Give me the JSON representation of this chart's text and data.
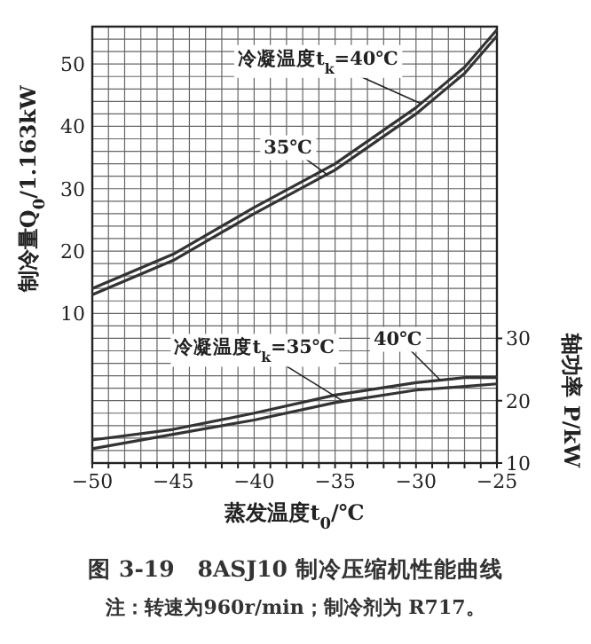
{
  "chart_data": {
    "type": "line",
    "title": "图 3-19　8ASJ10 制冷压缩机性能曲线",
    "annotations": [
      "注：转速为960r/min；制冷剂为 R717。"
    ],
    "xlabel": "蒸发温度t$_{0}$/℃",
    "ylabel": "制冷量Q$_{0}$/1.163kW",
    "y2label": "轴功率 P/kW",
    "x": [
      -50,
      -45,
      -40,
      -35,
      -30,
      -27,
      -25
    ],
    "series": [
      {
        "name": "冷凝温度t$_{k}$=40℃",
        "color": "#333333",
        "values": [
          14,
          19.5,
          27,
          34,
          43,
          49.5,
          55.5
        ]
      },
      {
        "name": "35℃",
        "color": "#333333",
        "values": [
          13,
          18.5,
          26,
          33,
          42,
          48.5,
          54.5
        ]
      },
      {
        "name": "冷凝温度t$_{k}$=35℃",
        "color": "#333333",
        "axis": "y2",
        "values": [
          12.3,
          14.6,
          16.9,
          19.7,
          21.7,
          22.3,
          22.7
        ]
      },
      {
        "name": "40℃",
        "color": "#333333",
        "axis": "y2",
        "values": [
          13.7,
          15.4,
          18,
          20.9,
          22.9,
          23.7,
          23.7
        ]
      }
    ],
    "xlim": [
      -50,
      -25
    ],
    "xticks": [
      -50,
      {
        "value": -49,
        "label": null
      },
      {
        "value": -48,
        "label": null
      },
      {
        "value": -47,
        "label": null
      },
      {
        "value": -46,
        "label": null
      },
      -45,
      {
        "value": -44,
        "label": null
      },
      {
        "value": -43,
        "label": null
      },
      {
        "value": -42,
        "label": null
      },
      {
        "value": -41,
        "label": null
      },
      -40,
      {
        "value": -39,
        "label": null
      },
      {
        "value": -38,
        "label": null
      },
      {
        "value": -37,
        "label": null
      },
      {
        "value": -36,
        "label": null
      },
      -35,
      {
        "value": -34,
        "label": null
      },
      {
        "value": -33,
        "label": null
      },
      {
        "value": -32,
        "label": null
      },
      {
        "value": -31,
        "label": null
      },
      -30,
      {
        "value": -29,
        "label": null
      },
      {
        "value": -28,
        "label": null
      },
      {
        "value": -27,
        "label": null
      },
      {
        "value": -26,
        "label": null
      },
      -25
    ],
    "ylim": [
      -14,
      56
    ],
    "yticks": [
      {
        "value": -12,
        "label": null
      },
      {
        "value": -10,
        "label": null
      },
      {
        "value": -8,
        "label": null
      },
      {
        "value": -6,
        "label": null
      },
      {
        "value": -4,
        "label": null
      },
      {
        "value": -2,
        "label": null
      },
      {
        "value": 0,
        "label": null
      },
      {
        "value": 2,
        "label": null
      },
      {
        "value": 4,
        "label": null
      },
      {
        "value": 6,
        "label": null
      },
      {
        "value": 8,
        "label": null
      },
      10,
      {
        "value": 12,
        "label": null
      },
      {
        "value": 14,
        "label": null
      },
      {
        "value": 16,
        "label": null
      },
      {
        "value": 18,
        "label": null
      },
      20,
      {
        "value": 22,
        "label": null
      },
      {
        "value": 24,
        "label": null
      },
      {
        "value": 26,
        "label": null
      },
      {
        "value": 28,
        "label": null
      },
      30,
      {
        "value": 32,
        "label": null
      },
      {
        "value": 34,
        "label": null
      },
      {
        "value": 36,
        "label": null
      },
      {
        "value": 38,
        "label": null
      },
      40,
      {
        "value": 42,
        "label": null
      },
      {
        "value": 44,
        "label": null
      },
      {
        "value": 46,
        "label": null
      },
      {
        "value": 48,
        "label": null
      },
      50,
      {
        "value": 52,
        "label": null
      },
      {
        "value": 54,
        "label": null
      }
    ],
    "y2lim": [
      10,
      80
    ],
    "y2ticks": [
      10,
      20,
      30
    ],
    "grid": true
  }
}
